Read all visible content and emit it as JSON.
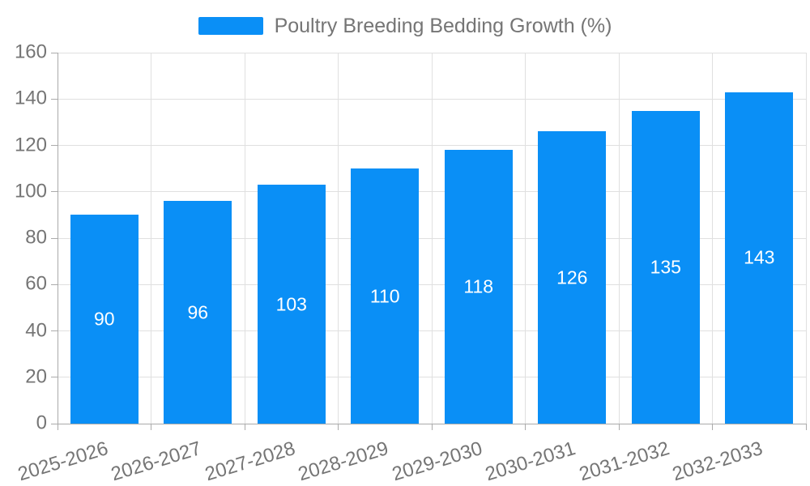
{
  "chart_data": {
    "type": "bar",
    "title": "Poultry Breeding Bedding Growth (%)",
    "legend": [
      "Poultry Breeding Bedding Growth (%)"
    ],
    "legend_position": "top-center",
    "categories": [
      "2025-2026",
      "2026-2027",
      "2027-2028",
      "2028-2029",
      "2029-2030",
      "2030-2031",
      "2031-2032",
      "2032-2033"
    ],
    "values": [
      90,
      96,
      103,
      110,
      118,
      126,
      135,
      143
    ],
    "value_labels_inside_bars": true,
    "xlabel": "",
    "ylabel": "",
    "ylim": [
      0,
      160
    ],
    "ytick_step": 20,
    "yticks": [
      0,
      20,
      40,
      60,
      80,
      100,
      120,
      140,
      160
    ],
    "grid": true,
    "x_label_rotation_deg": -17,
    "colors": {
      "bar": "#0A8FF6",
      "axis_line": "#AAAAAA",
      "gridline": "#E0E0E0",
      "tick": "#ABABAB",
      "axis_label_text": "#757575",
      "legend_text": "#757575",
      "value_label_text": "#FFFFFF",
      "background": "#FFFFFF"
    }
  }
}
